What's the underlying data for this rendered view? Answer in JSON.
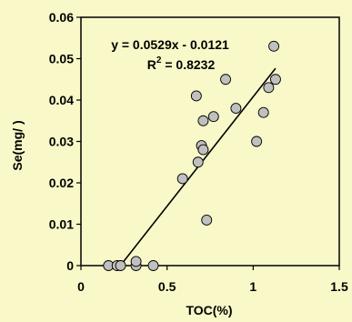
{
  "chart_data": {
    "type": "scatter",
    "xlabel": "TOC(%)",
    "ylabel": "Se(mg/ )",
    "xlim": [
      0,
      1.5
    ],
    "ylim": [
      0,
      0.06
    ],
    "x_ticks": [
      "0",
      "0.5",
      "1",
      "1.5"
    ],
    "y_ticks": [
      "0",
      "0.01",
      "0.02",
      "0.03",
      "0.04",
      "0.05",
      "0.06"
    ],
    "x_tick_values": [
      0,
      0.5,
      1,
      1.5
    ],
    "y_tick_values": [
      0,
      0.01,
      0.02,
      0.03,
      0.04,
      0.05,
      0.06
    ],
    "grid": false,
    "series": [
      {
        "points": [
          {
            "x": 0.16,
            "y": 0.0
          },
          {
            "x": 0.21,
            "y": 0.0
          },
          {
            "x": 0.23,
            "y": 0.0
          },
          {
            "x": 0.32,
            "y": 0.0
          },
          {
            "x": 0.32,
            "y": 0.001
          },
          {
            "x": 0.42,
            "y": 0.0
          },
          {
            "x": 0.59,
            "y": 0.021
          },
          {
            "x": 0.67,
            "y": 0.041
          },
          {
            "x": 0.68,
            "y": 0.025
          },
          {
            "x": 0.7,
            "y": 0.029
          },
          {
            "x": 0.71,
            "y": 0.028
          },
          {
            "x": 0.71,
            "y": 0.035
          },
          {
            "x": 0.73,
            "y": 0.011
          },
          {
            "x": 0.77,
            "y": 0.036
          },
          {
            "x": 0.84,
            "y": 0.045
          },
          {
            "x": 0.9,
            "y": 0.038
          },
          {
            "x": 1.02,
            "y": 0.03
          },
          {
            "x": 1.06,
            "y": 0.037
          },
          {
            "x": 1.09,
            "y": 0.043
          },
          {
            "x": 1.12,
            "y": 0.053
          },
          {
            "x": 1.13,
            "y": 0.045
          }
        ]
      }
    ],
    "trendline": {
      "slope": 0.0529,
      "intercept": -0.0121,
      "x_range": [
        0.23,
        1.13
      ],
      "equation": "y = 0.0529x - 0.0121",
      "r2_label": "R",
      "r2_sup": "2",
      "r2_value": " = 0.8232"
    }
  }
}
